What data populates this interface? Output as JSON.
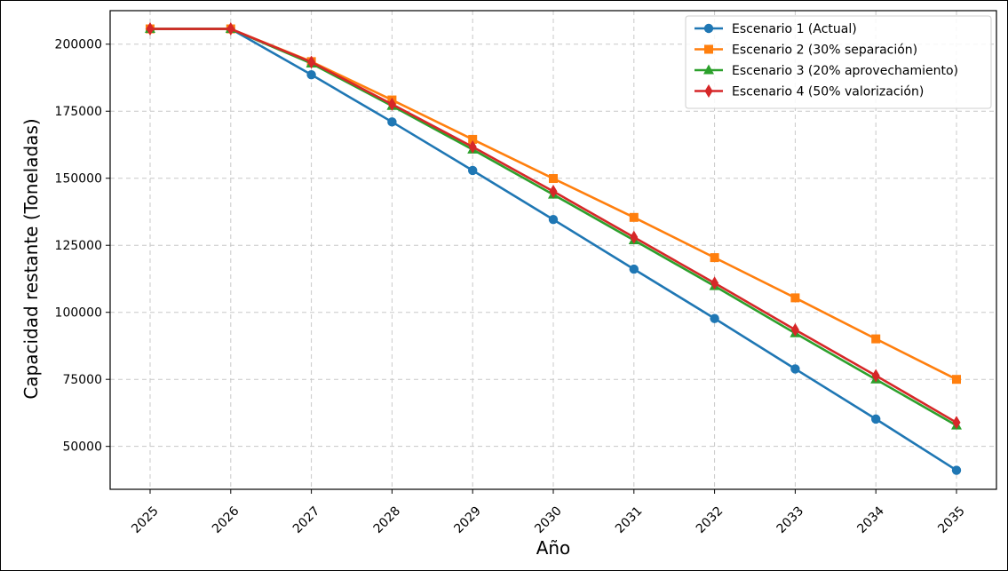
{
  "chart_data": {
    "type": "line",
    "title": "",
    "xlabel": "Año",
    "ylabel": "Capacidad restante (Toneladas)",
    "x": [
      "2025",
      "2026",
      "2027",
      "2028",
      "2029",
      "2030",
      "2031",
      "2032",
      "2033",
      "2034",
      "2035"
    ],
    "ylim": [
      34000,
      212500
    ],
    "yticks": [
      50000,
      75000,
      100000,
      125000,
      150000,
      175000,
      200000
    ],
    "ytick_labels": [
      "50000",
      "75000",
      "100000",
      "125000",
      "150000",
      "175000",
      "200000"
    ],
    "grid": true,
    "legend_position": "top-right",
    "series": [
      {
        "name": "Escenario 1 (Actual)",
        "color": "#1f77b4",
        "marker": "circle",
        "values": [
          205700,
          205700,
          188600,
          171000,
          152900,
          134600,
          116100,
          97700,
          78900,
          60200,
          41100
        ]
      },
      {
        "name": "Escenario 2 (30% separación)",
        "color": "#ff7f0e",
        "marker": "square",
        "values": [
          205700,
          205700,
          193500,
          179200,
          164500,
          149900,
          135400,
          120400,
          105400,
          90100,
          75000
        ]
      },
      {
        "name": "Escenario 3 (20% aprovechamiento)",
        "color": "#2ca02c",
        "marker": "triangle",
        "values": [
          205700,
          205700,
          192800,
          177000,
          160700,
          143900,
          126900,
          109800,
          92200,
          75000,
          57800
        ]
      },
      {
        "name": "Escenario 4 (50% valorización)",
        "color": "#d62728",
        "marker": "diamond",
        "values": [
          205700,
          205700,
          193300,
          177600,
          161700,
          145100,
          128000,
          110900,
          93500,
          76400,
          58900
        ]
      }
    ]
  }
}
